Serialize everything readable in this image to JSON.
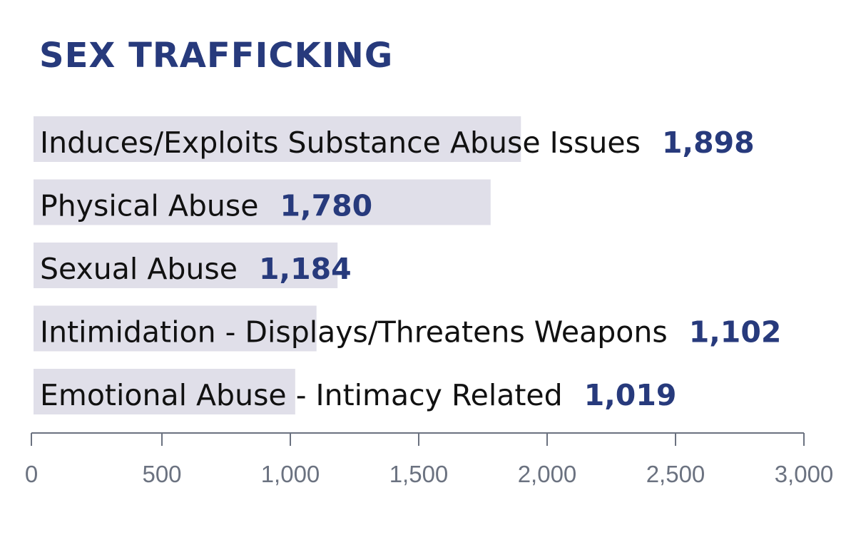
{
  "colors": {
    "title": "#273a7c",
    "bar": "#e0dfe9",
    "label": "#111111",
    "value": "#273a7c",
    "axis": "#6b7280",
    "tick_label": "#6b7280"
  },
  "chart_data": {
    "type": "bar",
    "orientation": "horizontal",
    "title": "SEX TRAFFICKING",
    "xlabel": "",
    "ylabel": "",
    "xlim": [
      0,
      3000
    ],
    "grid": false,
    "categories": [
      "Induces/Exploits Substance Abuse Issues",
      "Physical Abuse",
      "Sexual Abuse",
      "Intimidation - Displays/Threatens Weapons",
      "Emotional Abuse - Intimacy Related"
    ],
    "values": [
      1898,
      1780,
      1184,
      1102,
      1019
    ],
    "value_labels": [
      "1,898",
      "1,780",
      "1,184",
      "1,102",
      "1,019"
    ],
    "ticks": [
      0,
      500,
      1000,
      1500,
      2000,
      2500,
      3000
    ],
    "tick_labels": [
      "0",
      "500",
      "1,000",
      "1,500",
      "2,000",
      "2,500",
      "3,000"
    ]
  }
}
